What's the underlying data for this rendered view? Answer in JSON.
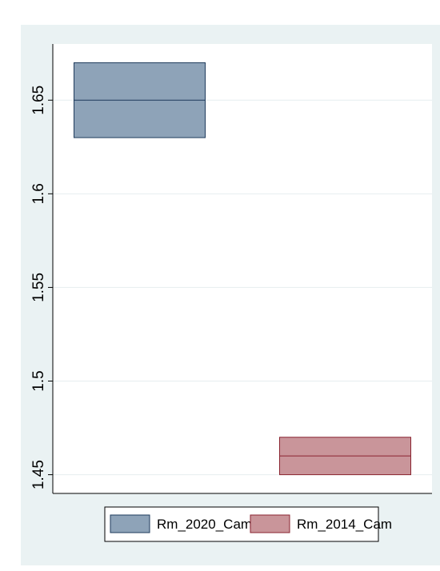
{
  "chart_data": {
    "type": "box",
    "title": "",
    "xlabel": "",
    "ylabel": "",
    "ylim": [
      1.44,
      1.68
    ],
    "yticks": [
      1.45,
      1.5,
      1.55,
      1.6,
      1.65
    ],
    "ytick_labels": [
      "1.45",
      "1.5",
      "1.55",
      "1.6",
      "1.65"
    ],
    "grid": true,
    "legend_position": "bottom",
    "series": [
      {
        "name": "Rm_2020_Cam",
        "q1": 1.63,
        "median": 1.65,
        "q3": 1.67,
        "fill": "#8EA3B8",
        "stroke": "#1F3B5C"
      },
      {
        "name": "Rm_2014_Cam",
        "q1": 1.45,
        "median": 1.46,
        "q3": 1.47,
        "fill": "#C9959A",
        "stroke": "#8A2430"
      }
    ]
  },
  "colors": {
    "plot_region_bg": "#EAF2F3",
    "plot_area_bg": "#FFFFFF",
    "gridline": "#E6EDEF"
  }
}
